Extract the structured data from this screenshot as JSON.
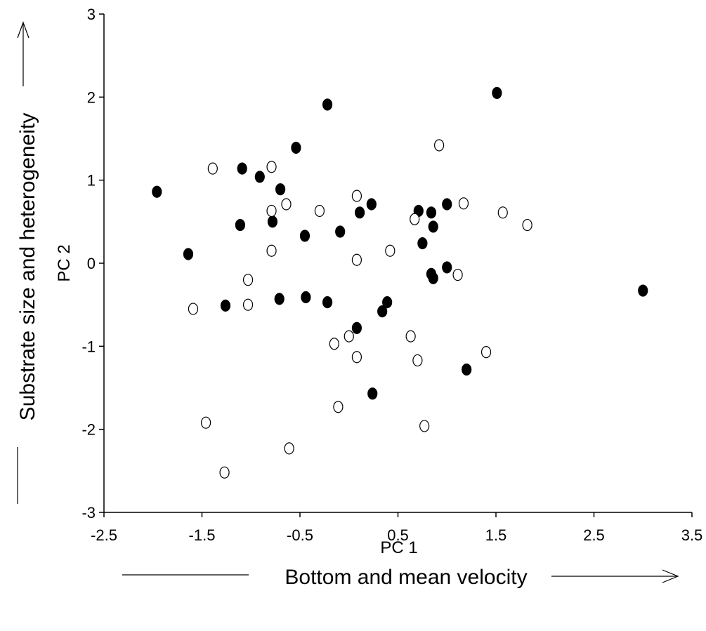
{
  "chart_data": {
    "type": "scatter",
    "title": "",
    "xlabel": "PC 1",
    "ylabel": "PC 2",
    "xlabel_desc": "Bottom and mean velocity",
    "ylabel_desc": "Substrate size and heterogeneity",
    "xlim": [
      -2.5,
      3.5
    ],
    "ylim": [
      -3,
      3
    ],
    "xticks": [
      "-2.5",
      "-1.5",
      "-0.5",
      "0.5",
      "1.5",
      "2.5",
      "3.5"
    ],
    "yticks": [
      "-3",
      "-2",
      "-1",
      "0",
      "1",
      "2",
      "3"
    ],
    "grid": false,
    "legend": "none",
    "series": [
      {
        "marker": "filled",
        "color": "#000000",
        "points": [
          [
            -1.96,
            0.86
          ],
          [
            -1.64,
            0.11
          ],
          [
            -1.26,
            -0.51
          ],
          [
            -1.09,
            1.14
          ],
          [
            -1.11,
            0.46
          ],
          [
            -0.91,
            1.04
          ],
          [
            -0.78,
            0.5
          ],
          [
            -0.7,
            0.89
          ],
          [
            -0.71,
            -0.43
          ],
          [
            -0.54,
            1.39
          ],
          [
            -0.45,
            0.33
          ],
          [
            -0.44,
            -0.41
          ],
          [
            -0.22,
            1.91
          ],
          [
            -0.22,
            -0.47
          ],
          [
            -0.09,
            0.38
          ],
          [
            0.08,
            -0.78
          ],
          [
            0.11,
            0.61
          ],
          [
            0.23,
            0.71
          ],
          [
            0.24,
            -1.57
          ],
          [
            0.34,
            -0.58
          ],
          [
            0.39,
            -0.47
          ],
          [
            0.71,
            0.63
          ],
          [
            0.75,
            0.24
          ],
          [
            0.84,
            0.61
          ],
          [
            0.84,
            -0.13
          ],
          [
            0.86,
            -0.18
          ],
          [
            0.86,
            0.44
          ],
          [
            1.0,
            0.71
          ],
          [
            1.0,
            -0.05
          ],
          [
            1.2,
            -1.28
          ],
          [
            1.51,
            2.05
          ],
          [
            3.0,
            -0.33
          ]
        ]
      },
      {
        "marker": "open",
        "color": "#000000",
        "points": [
          [
            -1.59,
            -0.55
          ],
          [
            -1.46,
            -1.92
          ],
          [
            -1.39,
            1.14
          ],
          [
            -1.27,
            -2.52
          ],
          [
            -1.03,
            -0.2
          ],
          [
            -1.03,
            -0.5
          ],
          [
            -0.79,
            1.16
          ],
          [
            -0.79,
            0.63
          ],
          [
            -0.79,
            0.15
          ],
          [
            -0.64,
            0.71
          ],
          [
            -0.61,
            -2.23
          ],
          [
            -0.3,
            0.63
          ],
          [
            -0.15,
            -0.97
          ],
          [
            -0.11,
            -1.73
          ],
          [
            0.0,
            -0.88
          ],
          [
            0.08,
            0.81
          ],
          [
            0.08,
            0.04
          ],
          [
            0.08,
            -1.13
          ],
          [
            0.42,
            0.15
          ],
          [
            0.63,
            -0.88
          ],
          [
            0.67,
            0.53
          ],
          [
            0.7,
            -1.17
          ],
          [
            0.77,
            -1.96
          ],
          [
            0.92,
            1.42
          ],
          [
            1.11,
            -0.14
          ],
          [
            1.17,
            0.72
          ],
          [
            1.4,
            -1.07
          ],
          [
            1.57,
            0.61
          ],
          [
            1.82,
            0.46
          ]
        ]
      }
    ]
  }
}
